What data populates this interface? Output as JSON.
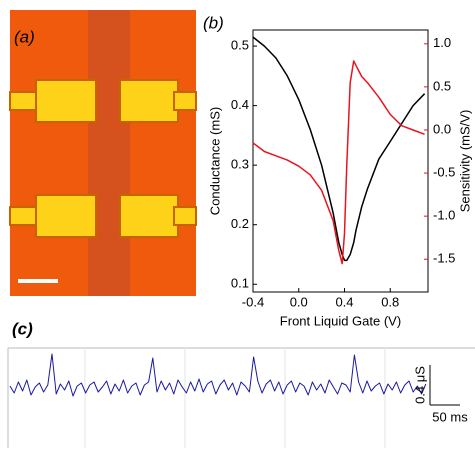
{
  "image": {
    "label": "(a)"
  },
  "chart_data": [
    {
      "type": "line",
      "panel_label": "(b)",
      "xlabel": "Front Liquid Gate (V)",
      "ylabel": "Conductance (mS)",
      "y2label": "Sensitivity (mS/V)",
      "x": [
        -0.4,
        -0.3,
        -0.2,
        -0.1,
        0,
        0.1,
        0.2,
        0.3,
        0.35,
        0.38,
        0.4,
        0.42,
        0.45,
        0.48,
        0.5,
        0.55,
        0.6,
        0.7,
        0.8,
        0.9,
        1.0,
        1.1
      ],
      "series": [
        {
          "color": "#000000",
          "values": [
            0.515,
            0.5,
            0.48,
            0.45,
            0.41,
            0.36,
            0.3,
            0.22,
            0.17,
            0.15,
            0.14,
            0.14,
            0.15,
            0.17,
            0.19,
            0.23,
            0.26,
            0.31,
            0.34,
            0.37,
            0.4,
            0.42
          ]
        },
        {
          "color": "#e8141e",
          "axis": "y2",
          "values": [
            -0.15,
            -0.25,
            -0.3,
            -0.35,
            -0.42,
            -0.52,
            -0.7,
            -1.05,
            -1.4,
            -1.55,
            -1.2,
            -0.4,
            0.55,
            0.8,
            0.75,
            0.62,
            0.55,
            0.38,
            0.18,
            0.05,
            0.0,
            -0.05
          ]
        }
      ],
      "xlim": [
        -0.4,
        1.13
      ],
      "xticks": [
        -0.4,
        {
          "value": 0,
          "label": "0.0"
        },
        0.4,
        0.8
      ],
      "ylim": [
        0.087,
        0.527
      ],
      "yticks": [
        0.1,
        0.2,
        0.3,
        0.4,
        0.5
      ],
      "y2lim": [
        -1.88,
        1.16
      ],
      "y2ticks": [
        {
          "value": 1,
          "label": "1.0"
        },
        0.5,
        {
          "value": 0,
          "label": "0.0"
        },
        -0.5,
        {
          "value": -1,
          "label": "-1.0"
        },
        -1.5
      ]
    },
    {
      "type": "line",
      "panel_label": "(c)",
      "color": "#1a1aa0",
      "x": [
        0,
        7,
        14,
        21,
        28,
        35,
        42,
        49,
        56,
        63,
        70,
        77,
        84,
        91,
        98,
        105,
        112,
        119,
        126,
        133,
        140,
        147,
        154,
        161,
        168,
        175,
        182,
        189,
        196,
        203,
        210,
        217,
        224,
        231,
        238,
        245,
        252,
        259,
        266,
        273,
        280,
        287,
        294,
        301,
        308,
        315,
        322,
        329,
        336,
        343,
        350,
        357,
        364,
        371,
        378,
        385,
        392,
        399,
        406,
        413,
        420,
        427,
        434,
        441,
        448,
        455,
        462,
        469,
        476,
        483,
        490,
        497,
        504,
        511,
        518,
        525,
        532,
        539,
        546,
        553,
        560,
        567,
        574,
        581,
        588,
        595,
        602,
        609,
        616,
        623,
        630,
        637,
        644,
        651,
        658,
        665,
        672,
        679,
        686,
        693
      ],
      "values": [
        0.02,
        -0.05,
        0.06,
        -0.03,
        0.08,
        -0.07,
        0.01,
        0.05,
        -0.04,
        0.03,
        0.34,
        -0.06,
        0.04,
        -0.02,
        0.07,
        -0.08,
        0.02,
        0.05,
        -0.05,
        0.03,
        0.06,
        -0.04,
        0.01,
        0.07,
        -0.06,
        0.04,
        -0.03,
        0.08,
        -0.05,
        0.02,
        0.05,
        -0.07,
        0.03,
        0.06,
        0.3,
        -0.04,
        0.07,
        -0.02,
        0.05,
        -0.06,
        0.08,
        0.01,
        -0.05,
        0.06,
        -0.03,
        0.09,
        -0.04,
        0.04,
        0.07,
        -0.06,
        0.03,
        0.08,
        -0.02,
        0.05,
        -0.07,
        0.06,
        0.02,
        -0.04,
        0.31,
        0.07,
        -0.05,
        0.04,
        0.08,
        -0.03,
        0.06,
        -0.06,
        0.03,
        0.07,
        -0.04,
        0.05,
        0.02,
        -0.07,
        0.06,
        -0.02,
        0.04,
        -0.05,
        0.08,
        0.01,
        -0.06,
        0.05,
        0.03,
        -0.04,
        0.33,
        0.06,
        -0.05,
        0.07,
        -0.03,
        0.02,
        0.05,
        -0.06,
        0.04,
        -0.02,
        0.06,
        -0.05,
        0.03,
        0.07,
        -0.04,
        0.02,
        -0.06,
        0.04
      ],
      "xlim": [
        0,
        690
      ],
      "ylim": [
        -0.57,
        0.4
      ],
      "y_scalebar": {
        "value": 0.4,
        "label": "0.4 μS"
      },
      "x_scalebar": {
        "value": 50,
        "label": "50 ms"
      }
    }
  ]
}
